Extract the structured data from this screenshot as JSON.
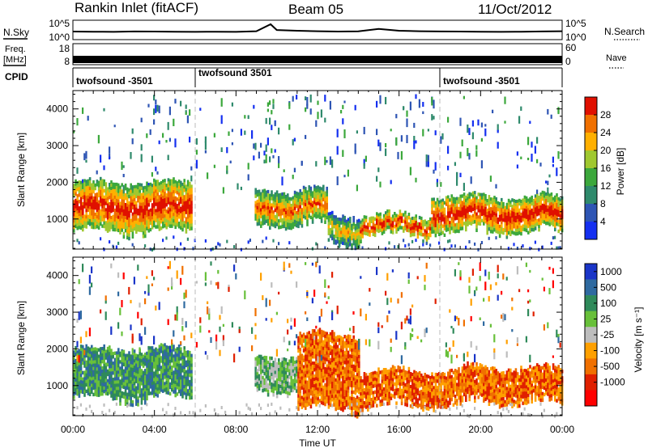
{
  "header": {
    "station": "Rankin Inlet (fitACF)",
    "beam": "Beam 05",
    "date": "11/Oct/2012"
  },
  "panel_labels": {
    "nsky": "N.Sky",
    "freq_line1": "Freq.",
    "freq_line2": "[MHz]",
    "cpid": "CPID",
    "nsearch": "N.Search",
    "nave": "Nave"
  },
  "cpid_segments": [
    {
      "label": "twofsound -3501",
      "start_hour": 0
    },
    {
      "label": "twofsound 3501",
      "start_hour": 6
    },
    {
      "label": "twofsound -3501",
      "start_hour": 18
    }
  ],
  "chart_data": [
    {
      "type": "line",
      "name": "noise",
      "xlim": [
        0,
        24
      ],
      "left_ticks": [
        "10^5",
        "10^0"
      ],
      "right_ticks": [
        "10^5",
        "10^0"
      ],
      "series": [
        {
          "name": "N.Sky",
          "x": [
            0,
            1,
            2,
            3,
            4,
            5,
            6,
            7,
            8,
            9,
            9.7,
            10,
            11,
            12,
            13,
            14,
            15,
            16,
            17,
            18,
            19,
            20,
            21,
            22,
            23,
            24
          ],
          "values": [
            120,
            110,
            100,
            130,
            120,
            110,
            100,
            110,
            100,
            150,
            9000,
            300,
            200,
            150,
            120,
            140,
            600,
            200,
            150,
            130,
            120,
            110,
            100,
            110,
            130,
            150
          ]
        }
      ]
    },
    {
      "type": "line",
      "name": "frequency",
      "xlim": [
        0,
        24
      ],
      "left_ticks": [
        "18",
        "8"
      ],
      "right_ticks": [
        "60",
        "0"
      ],
      "series": [
        {
          "name": "Freq.",
          "x": [
            0,
            24
          ],
          "values": [
            10.5,
            10.5
          ]
        },
        {
          "name": "Nave",
          "x": [
            0,
            24
          ],
          "values": [
            22,
            22
          ]
        }
      ]
    },
    {
      "type": "heatmap",
      "title": "Power",
      "xlabel": "",
      "ylabel": "Slant Range [km]",
      "xlim": [
        0,
        24
      ],
      "ylim": [
        180,
        4500
      ],
      "yticks": [
        1000,
        2000,
        3000,
        4000
      ],
      "colorbar": {
        "label": "Power [dB]",
        "ticks": [
          "4",
          "8",
          "12",
          "16",
          "20",
          "24",
          "28"
        ],
        "colors": [
          "#1530f0",
          "#2e55b4",
          "#2f8a6c",
          "#3ca83c",
          "#a0c830",
          "#ffb000",
          "#f07000",
          "#e01000"
        ]
      },
      "echo_bands": [
        {
          "start": 0.0,
          "end": 5.8,
          "lo": 700,
          "hi": 2000,
          "level": 6
        },
        {
          "start": 8.9,
          "end": 12.5,
          "lo": 900,
          "hi": 1800,
          "level": 5
        },
        {
          "start": 12.5,
          "end": 14.0,
          "lo": 350,
          "hi": 1100,
          "level": 4
        },
        {
          "start": 14.0,
          "end": 17.5,
          "lo": 600,
          "hi": 1100,
          "level": 6
        },
        {
          "start": 17.5,
          "end": 24.0,
          "lo": 700,
          "hi": 1600,
          "level": 6
        }
      ]
    },
    {
      "type": "heatmap",
      "title": "Velocity",
      "xlabel": "Time UT",
      "ylabel": "Slant Range [km]",
      "xlim": [
        0,
        24
      ],
      "ylim": [
        180,
        4500
      ],
      "yticks": [
        1000,
        2000,
        3000,
        4000
      ],
      "xticks": [
        "00:00",
        "04:00",
        "08:00",
        "12:00",
        "16:00",
        "20:00",
        "00:00"
      ],
      "colorbar": {
        "label": "Velocity [m s⁻¹]",
        "ticks": [
          "1000",
          "500",
          "100",
          "25",
          "-25",
          "-100",
          "-500",
          "-1000"
        ],
        "colors": [
          "#1a35c8",
          "#2f6aa0",
          "#2f8a5a",
          "#68c03a",
          "#bdbdbd",
          "#ffa000",
          "#f07000",
          "#e02000",
          "#ff0000"
        ]
      },
      "echo_bands": [
        {
          "start": 0.0,
          "end": 5.8,
          "lo": 700,
          "hi": 2000,
          "level": 2
        },
        {
          "start": 8.9,
          "end": 11.0,
          "lo": 900,
          "hi": 1800,
          "level": 3
        },
        {
          "start": 11.0,
          "end": 14.0,
          "lo": 400,
          "hi": 2400,
          "level": 6
        },
        {
          "start": 14.0,
          "end": 19.0,
          "lo": 500,
          "hi": 1400,
          "level": 6
        },
        {
          "start": 19.0,
          "end": 24.0,
          "lo": 600,
          "hi": 1500,
          "level": 6
        }
      ]
    }
  ]
}
